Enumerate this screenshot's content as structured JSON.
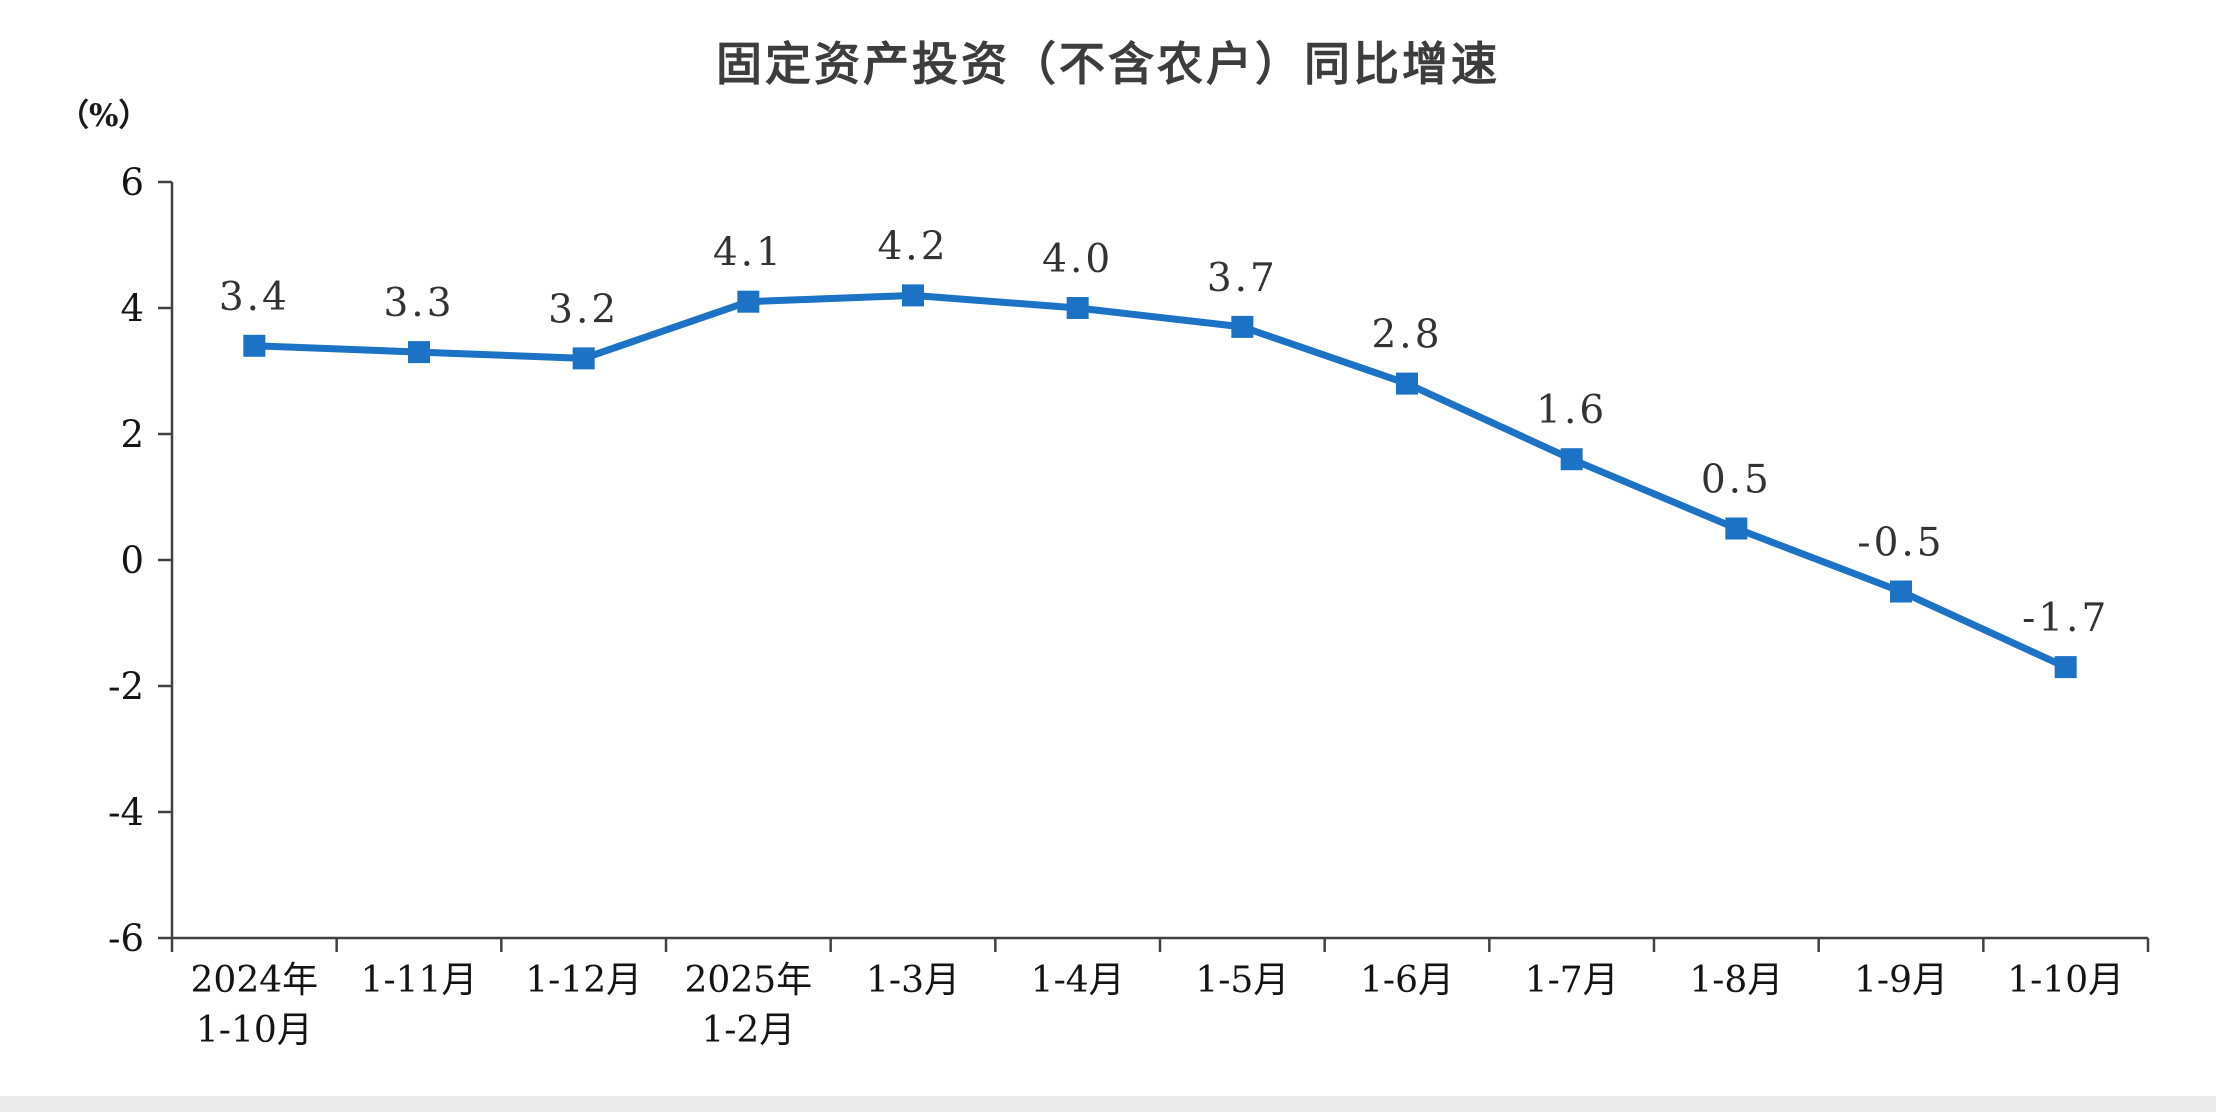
{
  "page": {
    "background": "#ffffff"
  },
  "chart_data": {
    "type": "line",
    "title": "固定资产投资（不含农户）同比增速",
    "unit_label": "（%）",
    "categories": [
      [
        "2024年",
        "1-10月"
      ],
      [
        "1-11月"
      ],
      [
        "1-12月"
      ],
      [
        "2025年",
        "1-2月"
      ],
      [
        "1-3月"
      ],
      [
        "1-4月"
      ],
      [
        "1-5月"
      ],
      [
        "1-6月"
      ],
      [
        "1-7月"
      ],
      [
        "1-8月"
      ],
      [
        "1-9月"
      ],
      [
        "1-10月"
      ]
    ],
    "values": [
      3.4,
      3.3,
      3.2,
      4.1,
      4.2,
      4.0,
      3.7,
      2.8,
      1.6,
      0.5,
      -0.5,
      -1.7
    ],
    "labels": [
      "3.4",
      "3.3",
      "3.2",
      "4.1",
      "4.2",
      "4.0",
      "3.7",
      "2.8",
      "1.6",
      "0.5",
      "-0.5",
      "-1.7"
    ],
    "ylabel": "",
    "xlabel": "",
    "ylim": [
      -6,
      6
    ],
    "yticks": [
      6,
      4,
      2,
      0,
      -2,
      -4,
      -6
    ],
    "grid": false,
    "legend_position": "none",
    "series_color": "#1c72c4",
    "axis_color": "#404040",
    "marker": "square"
  }
}
